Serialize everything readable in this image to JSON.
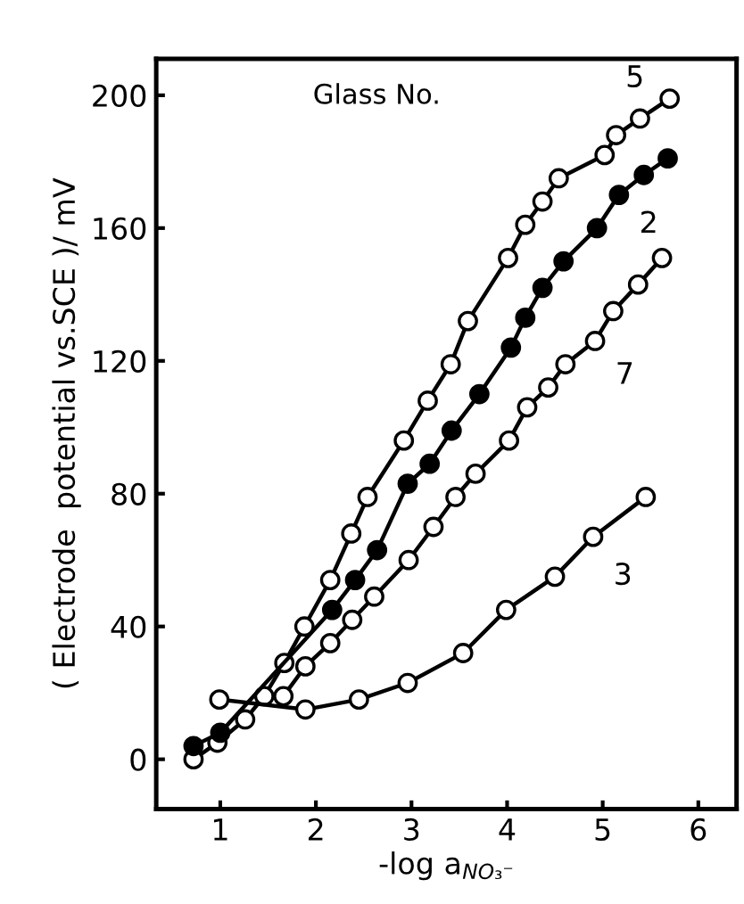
{
  "chart_data": {
    "type": "line",
    "xlabel": "-log a$_{NO₃⁻}$",
    "ylabel": "( Electrode  potential vs.SCE )/ mV",
    "legend_title": "Glass No.",
    "xlim": [
      0.33,
      6.4
    ],
    "ylim": [
      -15,
      211
    ],
    "xticks": [
      1,
      2,
      3,
      4,
      5,
      6
    ],
    "yticks": [
      0,
      40,
      80,
      120,
      160,
      200
    ],
    "grid": false,
    "legend": "top",
    "marker": "circle",
    "line_style": "solid",
    "series": [
      {
        "name": "5",
        "color": "#000000",
        "x": [
          0.72,
          0.97,
          1.26,
          1.46,
          1.67,
          1.88,
          2.15,
          2.37,
          2.54,
          2.92,
          3.17,
          3.41,
          3.59,
          4.01,
          4.19,
          4.37,
          4.54,
          5.02,
          5.14,
          5.39,
          5.7
        ],
        "values": [
          0,
          5,
          12,
          19,
          29,
          40,
          54,
          68,
          79,
          96,
          108,
          119,
          132,
          151,
          161,
          168,
          175,
          182,
          188,
          193,
          199
        ]
      },
      {
        "name": "2",
        "color": "#000000",
        "x": [
          0.72,
          1.0,
          2.17,
          2.41,
          2.64,
          2.96,
          3.19,
          3.42,
          3.71,
          4.04,
          4.19,
          4.37,
          4.59,
          4.94,
          5.17,
          5.43,
          5.68
        ],
        "values": [
          4,
          8,
          45,
          54,
          63,
          83,
          89,
          99,
          110,
          124,
          133,
          142,
          150,
          160,
          170,
          176,
          181
        ]
      },
      {
        "name": "7",
        "color": "#000000",
        "x": [
          1.66,
          1.89,
          2.15,
          2.38,
          2.61,
          2.97,
          3.23,
          3.46,
          3.67,
          4.02,
          4.21,
          4.43,
          4.61,
          4.92,
          5.11,
          5.37,
          5.62
        ],
        "values": [
          19,
          28,
          35,
          42,
          49,
          60,
          70,
          79,
          86,
          96,
          106,
          112,
          119,
          126,
          135,
          143,
          151
        ]
      },
      {
        "name": "3",
        "color": "#000000",
        "x": [
          0.99,
          1.89,
          2.45,
          2.96,
          3.54,
          3.99,
          4.5,
          4.9,
          5.45
        ],
        "values": [
          18,
          15,
          18,
          23,
          32,
          45,
          55,
          67,
          79
        ]
      }
    ]
  }
}
